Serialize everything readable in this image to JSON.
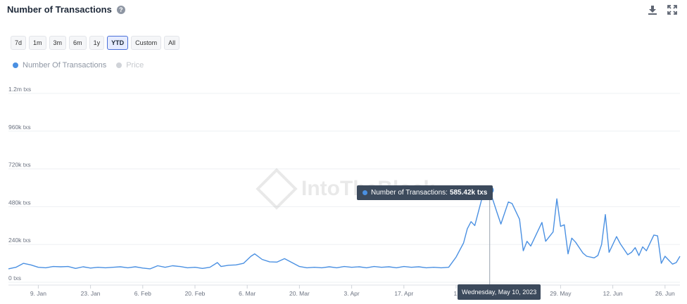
{
  "header": {
    "title": "Number of Transactions",
    "help_icon": "question-circle-icon",
    "download_icon": "download-icon",
    "expand_icon": "expand-icon"
  },
  "ranges": [
    {
      "label": "7d",
      "active": false
    },
    {
      "label": "1m",
      "active": false
    },
    {
      "label": "3m",
      "active": false
    },
    {
      "label": "6m",
      "active": false
    },
    {
      "label": "1y",
      "active": false
    },
    {
      "label": "YTD",
      "active": true
    },
    {
      "label": "Custom",
      "active": false
    },
    {
      "label": "All",
      "active": false
    }
  ],
  "legend": [
    {
      "label": "Number Of Transactions",
      "color": "#4a90e2",
      "text_color": "#8e96a3"
    },
    {
      "label": "Price",
      "color": "#d0d3d8",
      "text_color": "#c6c9ce"
    }
  ],
  "watermark": "IntoTheBlock",
  "tooltip": {
    "series": "Number of Transactions:",
    "value": "585.42k txs",
    "date": "Wednesday, May 10, 2023"
  },
  "chart_data": {
    "type": "line",
    "title": "Number of Transactions",
    "y_ticks": [
      {
        "value": 0,
        "label": "0 txs"
      },
      {
        "value": 240000,
        "label": "240k txs"
      },
      {
        "value": 480000,
        "label": "480k txs"
      },
      {
        "value": 720000,
        "label": "720k txs"
      },
      {
        "value": 960000,
        "label": "960k txs"
      },
      {
        "value": 1200000,
        "label": "1.2m txs"
      }
    ],
    "ylim": [
      0,
      1200000
    ],
    "x_range": [
      "2023-01-01",
      "2023-06-30"
    ],
    "x_ticks": [
      {
        "date": "2023-01-09",
        "label": "9. Jan"
      },
      {
        "date": "2023-01-23",
        "label": "23. Jan"
      },
      {
        "date": "2023-02-06",
        "label": "6. Feb"
      },
      {
        "date": "2023-02-20",
        "label": "20. Feb"
      },
      {
        "date": "2023-03-06",
        "label": "6. Mar"
      },
      {
        "date": "2023-03-20",
        "label": "20. Mar"
      },
      {
        "date": "2023-04-03",
        "label": "3. Apr"
      },
      {
        "date": "2023-04-17",
        "label": "17. Apr"
      },
      {
        "date": "2023-05-01",
        "label": "1."
      },
      {
        "date": "2023-05-29",
        "label": "29. May"
      },
      {
        "date": "2023-06-12",
        "label": "12. Jun"
      },
      {
        "date": "2023-06-26",
        "label": "26. Jun"
      }
    ],
    "grid": true,
    "legend_position": "top-left",
    "highlight": {
      "date": "2023-05-10",
      "value": 585420
    },
    "series": [
      {
        "name": "Number Of Transactions",
        "color": "#4a90e2",
        "points": [
          [
            "2023-01-01",
            85000
          ],
          [
            "2023-01-03",
            95000
          ],
          [
            "2023-01-05",
            120000
          ],
          [
            "2023-01-07",
            110000
          ],
          [
            "2023-01-09",
            95000
          ],
          [
            "2023-01-11",
            92000
          ],
          [
            "2023-01-13",
            100000
          ],
          [
            "2023-01-15",
            98000
          ],
          [
            "2023-01-17",
            100000
          ],
          [
            "2023-01-19",
            88000
          ],
          [
            "2023-01-21",
            98000
          ],
          [
            "2023-01-23",
            90000
          ],
          [
            "2023-01-25",
            95000
          ],
          [
            "2023-01-27",
            92000
          ],
          [
            "2023-01-29",
            95000
          ],
          [
            "2023-01-31",
            98000
          ],
          [
            "2023-02-02",
            92000
          ],
          [
            "2023-02-04",
            98000
          ],
          [
            "2023-02-06",
            90000
          ],
          [
            "2023-02-08",
            85000
          ],
          [
            "2023-02-10",
            105000
          ],
          [
            "2023-02-12",
            95000
          ],
          [
            "2023-02-14",
            105000
          ],
          [
            "2023-02-16",
            100000
          ],
          [
            "2023-02-18",
            92000
          ],
          [
            "2023-02-20",
            95000
          ],
          [
            "2023-02-22",
            88000
          ],
          [
            "2023-02-24",
            95000
          ],
          [
            "2023-02-26",
            125000
          ],
          [
            "2023-02-27",
            100000
          ],
          [
            "2023-03-01",
            108000
          ],
          [
            "2023-03-03",
            110000
          ],
          [
            "2023-03-05",
            120000
          ],
          [
            "2023-03-07",
            165000
          ],
          [
            "2023-03-08",
            180000
          ],
          [
            "2023-03-10",
            145000
          ],
          [
            "2023-03-12",
            130000
          ],
          [
            "2023-03-14",
            128000
          ],
          [
            "2023-03-16",
            150000
          ],
          [
            "2023-03-18",
            125000
          ],
          [
            "2023-03-20",
            100000
          ],
          [
            "2023-03-22",
            92000
          ],
          [
            "2023-03-24",
            95000
          ],
          [
            "2023-03-26",
            92000
          ],
          [
            "2023-03-28",
            98000
          ],
          [
            "2023-03-30",
            92000
          ],
          [
            "2023-04-01",
            100000
          ],
          [
            "2023-04-03",
            95000
          ],
          [
            "2023-04-05",
            98000
          ],
          [
            "2023-04-07",
            92000
          ],
          [
            "2023-04-09",
            100000
          ],
          [
            "2023-04-11",
            95000
          ],
          [
            "2023-04-13",
            98000
          ],
          [
            "2023-04-15",
            92000
          ],
          [
            "2023-04-17",
            100000
          ],
          [
            "2023-04-19",
            95000
          ],
          [
            "2023-04-21",
            98000
          ],
          [
            "2023-04-23",
            92000
          ],
          [
            "2023-04-25",
            95000
          ],
          [
            "2023-04-27",
            92000
          ],
          [
            "2023-04-29",
            95000
          ],
          [
            "2023-05-01",
            160000
          ],
          [
            "2023-05-03",
            250000
          ],
          [
            "2023-05-04",
            340000
          ],
          [
            "2023-05-05",
            385000
          ],
          [
            "2023-05-06",
            360000
          ],
          [
            "2023-05-08",
            540000
          ],
          [
            "2023-05-10",
            585420
          ],
          [
            "2023-05-12",
            440000
          ],
          [
            "2023-05-13",
            370000
          ],
          [
            "2023-05-15",
            510000
          ],
          [
            "2023-05-16",
            500000
          ],
          [
            "2023-05-18",
            400000
          ],
          [
            "2023-05-19",
            200000
          ],
          [
            "2023-05-20",
            260000
          ],
          [
            "2023-05-21",
            230000
          ],
          [
            "2023-05-24",
            380000
          ],
          [
            "2023-05-25",
            260000
          ],
          [
            "2023-05-27",
            320000
          ],
          [
            "2023-05-28",
            530000
          ],
          [
            "2023-05-29",
            355000
          ],
          [
            "2023-05-30",
            365000
          ],
          [
            "2023-05-31",
            180000
          ],
          [
            "2023-06-01",
            280000
          ],
          [
            "2023-06-02",
            255000
          ],
          [
            "2023-06-04",
            185000
          ],
          [
            "2023-06-05",
            165000
          ],
          [
            "2023-06-07",
            155000
          ],
          [
            "2023-06-08",
            170000
          ],
          [
            "2023-06-09",
            240000
          ],
          [
            "2023-06-10",
            430000
          ],
          [
            "2023-06-11",
            190000
          ],
          [
            "2023-06-13",
            290000
          ],
          [
            "2023-06-14",
            245000
          ],
          [
            "2023-06-16",
            175000
          ],
          [
            "2023-06-17",
            190000
          ],
          [
            "2023-06-18",
            220000
          ],
          [
            "2023-06-19",
            170000
          ],
          [
            "2023-06-20",
            225000
          ],
          [
            "2023-06-21",
            200000
          ],
          [
            "2023-06-23",
            300000
          ],
          [
            "2023-06-24",
            295000
          ],
          [
            "2023-06-25",
            120000
          ],
          [
            "2023-06-26",
            165000
          ],
          [
            "2023-06-27",
            140000
          ],
          [
            "2023-06-28",
            115000
          ],
          [
            "2023-06-29",
            125000
          ],
          [
            "2023-06-30",
            165000
          ]
        ]
      }
    ]
  }
}
